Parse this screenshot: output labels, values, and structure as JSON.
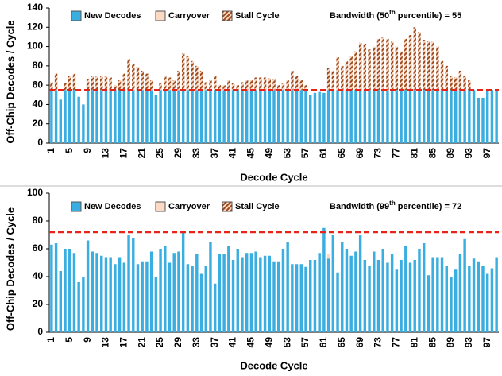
{
  "chart_data": [
    {
      "type": "bar",
      "stacked": true,
      "xlabel": "Decode Cycle",
      "ylabel": "Off-Chip Decodes / Cycle",
      "annotation": {
        "prefix": "Bandwidth (50",
        "sup": "th",
        "suffix": " percentile) = 55"
      },
      "threshold": 55,
      "threshold_color": "#e8241a",
      "categories": [
        1,
        null,
        null,
        null,
        5,
        null,
        null,
        null,
        9,
        null,
        null,
        null,
        13,
        null,
        null,
        null,
        17,
        null,
        null,
        null,
        21,
        null,
        null,
        null,
        25,
        null,
        null,
        null,
        29,
        null,
        null,
        null,
        33,
        null,
        null,
        null,
        37,
        null,
        null,
        null,
        41,
        null,
        null,
        null,
        45,
        null,
        null,
        null,
        49,
        null,
        null,
        null,
        53,
        null,
        null,
        null,
        57,
        null,
        null,
        null,
        61,
        null,
        null,
        null,
        65,
        null,
        null,
        null,
        69,
        null,
        null,
        null,
        73,
        null,
        null,
        null,
        77,
        null,
        null,
        null,
        81,
        null,
        null,
        null,
        85,
        null,
        null,
        null,
        89,
        null,
        null,
        null,
        93,
        null,
        null,
        null,
        97,
        null,
        null
      ],
      "series": [
        {
          "name": "New Decodes",
          "color": "#3aaee0",
          "values": [
            55,
            55,
            45,
            55,
            55,
            55,
            48,
            40,
            55,
            55,
            55,
            55,
            55,
            55,
            55,
            55,
            55,
            55,
            55,
            55,
            55,
            55,
            55,
            50,
            55,
            55,
            55,
            55,
            55,
            55,
            55,
            55,
            55,
            55,
            55,
            55,
            55,
            55,
            55,
            55,
            55,
            55,
            55,
            55,
            55,
            55,
            55,
            55,
            55,
            55,
            55,
            55,
            55,
            55,
            55,
            55,
            55,
            50,
            52,
            53,
            52,
            55,
            55,
            55,
            55,
            55,
            55,
            55,
            55,
            55,
            55,
            55,
            55,
            55,
            55,
            55,
            55,
            55,
            55,
            55,
            55,
            55,
            55,
            55,
            55,
            55,
            55,
            55,
            55,
            55,
            55,
            55,
            55,
            55,
            47,
            47,
            55,
            55,
            55
          ]
        },
        {
          "name": "Carryover",
          "color": "#fbd9c4",
          "values": [
            0,
            0,
            0,
            0,
            0,
            0,
            0,
            0,
            0,
            0,
            0,
            0,
            0,
            0,
            0,
            0,
            0,
            0,
            0,
            0,
            0,
            0,
            0,
            0,
            0,
            0,
            0,
            0,
            0,
            0,
            0,
            0,
            0,
            0,
            0,
            0,
            0,
            0,
            0,
            0,
            0,
            0,
            0,
            0,
            0,
            0,
            0,
            0,
            0,
            0,
            0,
            0,
            0,
            0,
            0,
            0,
            0,
            0,
            0,
            0,
            0,
            0,
            0,
            0,
            0,
            0,
            0,
            0,
            0,
            0,
            0,
            0,
            0,
            0,
            0,
            0,
            0,
            0,
            0,
            0,
            0,
            0,
            0,
            0,
            0,
            0,
            0,
            0,
            0,
            0,
            0,
            0,
            0,
            0,
            0,
            0,
            0,
            0,
            0
          ]
        },
        {
          "name": "Stall Cycle",
          "color": "#9c4a1e",
          "hatch": true,
          "values": [
            8,
            17,
            0,
            7,
            15,
            17,
            0,
            0,
            11,
            15,
            14,
            15,
            14,
            13,
            5,
            10,
            17,
            32,
            27,
            24,
            20,
            17,
            10,
            0,
            7,
            15,
            13,
            10,
            20,
            38,
            35,
            30,
            25,
            20,
            8,
            10,
            15,
            5,
            5,
            10,
            7,
            5,
            8,
            10,
            10,
            13,
            13,
            13,
            12,
            11,
            5,
            7,
            10,
            20,
            15,
            10,
            5,
            0,
            0,
            0,
            0,
            23,
            20,
            34,
            25,
            30,
            35,
            40,
            49,
            48,
            42,
            45,
            53,
            55,
            53,
            50,
            45,
            40,
            53,
            57,
            65,
            60,
            52,
            51,
            50,
            45,
            30,
            25,
            15,
            13,
            20,
            15,
            10,
            0,
            0,
            0,
            0,
            0,
            0
          ]
        }
      ],
      "ylim": [
        0,
        140
      ],
      "yticks": [
        0,
        20,
        40,
        60,
        80,
        100,
        120,
        140
      ]
    },
    {
      "type": "bar",
      "stacked": true,
      "xlabel": "Decode Cycle",
      "ylabel": "Off-Chip Decodes / Cycle",
      "annotation": {
        "prefix": "Bandwidth (99",
        "sup": "th",
        "suffix": " percentile) = 72"
      },
      "threshold": 72,
      "threshold_color": "#e8241a",
      "categories": [
        1,
        null,
        null,
        null,
        5,
        null,
        null,
        null,
        9,
        null,
        null,
        null,
        13,
        null,
        null,
        null,
        17,
        null,
        null,
        null,
        21,
        null,
        null,
        null,
        25,
        null,
        null,
        null,
        29,
        null,
        null,
        null,
        33,
        null,
        null,
        null,
        37,
        null,
        null,
        null,
        41,
        null,
        null,
        null,
        45,
        null,
        null,
        null,
        49,
        null,
        null,
        null,
        53,
        null,
        null,
        null,
        57,
        null,
        null,
        null,
        61,
        null,
        null,
        null,
        65,
        null,
        null,
        null,
        69,
        null,
        null,
        null,
        73,
        null,
        null,
        null,
        77,
        null,
        null,
        null,
        81,
        null,
        null,
        null,
        85,
        null,
        null,
        null,
        89,
        null,
        null,
        null,
        93,
        null,
        null,
        null,
        97,
        null,
        null
      ],
      "series": [
        {
          "name": "New Decodes",
          "color": "#3aaee0",
          "values": [
            63,
            64,
            44,
            60,
            60,
            57,
            36,
            40,
            66,
            58,
            57,
            55,
            54,
            54,
            49,
            54,
            50,
            70,
            68,
            49,
            51,
            51,
            58,
            40,
            60,
            62,
            50,
            57,
            58,
            72,
            49,
            48,
            56,
            42,
            48,
            65,
            35,
            56,
            56,
            62,
            52,
            60,
            54,
            57,
            57,
            58,
            54,
            55,
            55,
            51,
            51,
            60,
            65,
            49,
            49,
            49,
            47,
            52,
            52,
            57,
            75,
            53,
            70,
            43,
            65,
            60,
            55,
            58,
            70,
            52,
            48,
            58,
            52,
            60,
            50,
            56,
            45,
            52,
            62,
            50,
            52,
            60,
            64,
            41,
            54,
            54,
            54,
            48,
            40,
            45,
            56,
            67,
            48,
            53,
            51,
            48,
            42,
            46,
            54
          ]
        },
        {
          "name": "Carryover",
          "color": "#fbd9c4",
          "values": [
            0,
            0,
            0,
            0,
            0,
            0,
            0,
            0,
            0,
            0,
            0,
            0,
            0,
            0,
            0,
            0,
            0,
            0,
            0,
            0,
            0,
            0,
            0,
            0,
            0,
            0,
            0,
            0,
            0,
            0,
            0,
            0,
            0,
            0,
            0,
            0,
            0,
            0,
            0,
            0,
            0,
            0,
            0,
            0,
            0,
            0,
            0,
            0,
            0,
            0,
            0,
            0,
            0,
            0,
            0,
            0,
            0,
            0,
            0,
            0,
            0,
            3,
            0,
            0,
            0,
            0,
            0,
            0,
            0,
            0,
            0,
            0,
            0,
            0,
            0,
            0,
            0,
            0,
            0,
            0,
            0,
            0,
            0,
            0,
            0,
            0,
            0,
            0,
            0,
            0,
            0,
            0,
            0,
            0,
            0,
            0,
            0,
            0,
            0
          ]
        },
        {
          "name": "Stall Cycle",
          "color": "#9c4a1e",
          "hatch": true,
          "values": [
            0,
            0,
            0,
            0,
            0,
            0,
            0,
            0,
            0,
            0,
            0,
            0,
            0,
            0,
            0,
            0,
            0,
            0,
            0,
            0,
            0,
            0,
            0,
            0,
            0,
            0,
            0,
            0,
            0,
            0,
            0,
            0,
            0,
            0,
            0,
            0,
            0,
            0,
            0,
            0,
            0,
            0,
            0,
            0,
            0,
            0,
            0,
            0,
            0,
            0,
            0,
            0,
            0,
            0,
            0,
            0,
            0,
            0,
            0,
            0,
            0,
            0,
            0,
            0,
            0,
            0,
            0,
            0,
            0,
            0,
            0,
            0,
            0,
            0,
            0,
            0,
            0,
            0,
            0,
            0,
            0,
            0,
            0,
            0,
            0,
            0,
            0,
            0,
            0,
            0,
            0,
            0,
            0,
            0,
            0,
            0,
            0,
            0,
            0
          ]
        }
      ],
      "ylim": [
        0,
        100
      ],
      "yticks": [
        0,
        20,
        40,
        60,
        80,
        100
      ]
    }
  ]
}
